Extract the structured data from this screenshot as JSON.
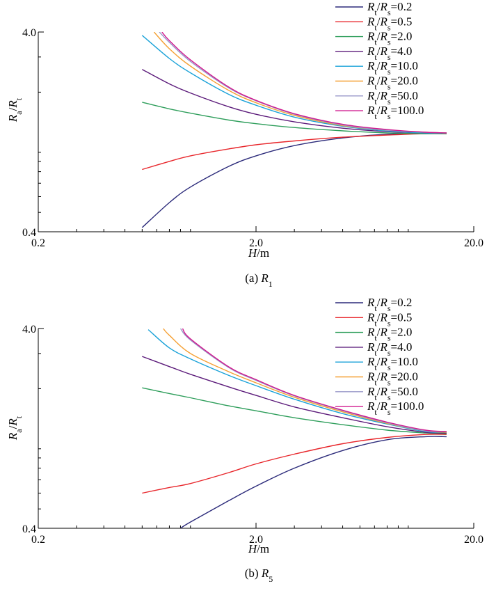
{
  "chart_data": [
    {
      "type": "line",
      "caption": "(a) R1",
      "caption_prefix": "(a) ",
      "caption_symbol": "R",
      "caption_subscript": "1",
      "xlabel": "H/m",
      "ylabel": "Ra/Rt",
      "xscale": "log",
      "yscale": "log",
      "xlim": [
        0.2,
        20.0
      ],
      "ylim": [
        0.4,
        4.0
      ],
      "x_ticklabels": [
        "0.2",
        "2.0",
        "20.0"
      ],
      "y_ticklabels": [
        "0.4",
        "4.0"
      ],
      "grid": false,
      "legend_position": "top-right",
      "series": [
        {
          "name": "Rt/Rs=0.2",
          "ratio": "0.2",
          "color": "#2b2a7a",
          "x": [
            0.6,
            0.8,
            1.0,
            1.5,
            2.0,
            3.0,
            5.0,
            8.0,
            12.0,
            15.0
          ],
          "y": [
            0.42,
            0.56,
            0.67,
            0.85,
            0.96,
            1.08,
            1.18,
            1.23,
            1.24,
            1.24
          ]
        },
        {
          "name": "Rt/Rs=0.5",
          "ratio": "0.5",
          "color": "#e8262b",
          "x": [
            0.6,
            0.8,
            1.0,
            1.5,
            2.0,
            3.0,
            5.0,
            8.0,
            12.0,
            15.0
          ],
          "y": [
            0.82,
            0.9,
            0.96,
            1.04,
            1.09,
            1.14,
            1.19,
            1.22,
            1.24,
            1.24
          ]
        },
        {
          "name": "Rt/Rs=2.0",
          "ratio": "2.0",
          "color": "#2e9e5b",
          "x": [
            0.6,
            0.8,
            1.0,
            1.5,
            2.0,
            3.0,
            5.0,
            8.0,
            12.0,
            15.0
          ],
          "y": [
            1.78,
            1.65,
            1.57,
            1.45,
            1.39,
            1.33,
            1.28,
            1.25,
            1.24,
            1.24
          ]
        },
        {
          "name": "Rt/Rs=4.0",
          "ratio": "4.0",
          "color": "#5b1a7a",
          "x": [
            0.6,
            0.8,
            1.0,
            1.5,
            2.0,
            3.0,
            5.0,
            8.0,
            12.0,
            15.0
          ],
          "y": [
            2.6,
            2.2,
            1.98,
            1.69,
            1.55,
            1.42,
            1.32,
            1.27,
            1.25,
            1.25
          ]
        },
        {
          "name": "Rt/Rs=10.0",
          "ratio": "10.0",
          "color": "#1aa2d8",
          "x": [
            0.6,
            0.8,
            1.0,
            1.5,
            2.0,
            3.0,
            5.0,
            8.0,
            12.0,
            15.0
          ],
          "y": [
            3.85,
            2.95,
            2.5,
            1.95,
            1.72,
            1.5,
            1.35,
            1.28,
            1.25,
            1.25
          ]
        },
        {
          "name": "Rt/Rs=20.0",
          "ratio": "20.0",
          "color": "#f5a033",
          "x": [
            0.68,
            0.8,
            1.0,
            1.5,
            2.0,
            3.0,
            5.0,
            8.0,
            12.0,
            15.0
          ],
          "y": [
            4.0,
            3.3,
            2.7,
            2.04,
            1.77,
            1.53,
            1.36,
            1.29,
            1.26,
            1.25
          ]
        },
        {
          "name": "Rt/Rs=50.0",
          "ratio": "50.0",
          "color": "#9a98c9",
          "x": [
            0.72,
            0.8,
            1.0,
            1.5,
            2.0,
            3.0,
            5.0,
            8.0,
            12.0,
            15.0
          ],
          "y": [
            4.0,
            3.55,
            2.85,
            2.1,
            1.81,
            1.55,
            1.37,
            1.29,
            1.26,
            1.25
          ]
        },
        {
          "name": "Rt/Rs=100.0",
          "ratio": "100.0",
          "color": "#d11a8f",
          "x": [
            0.74,
            0.8,
            1.0,
            1.5,
            2.0,
            3.0,
            5.0,
            8.0,
            12.0,
            15.0
          ],
          "y": [
            4.0,
            3.62,
            2.9,
            2.12,
            1.82,
            1.56,
            1.38,
            1.3,
            1.26,
            1.25
          ]
        }
      ]
    },
    {
      "type": "line",
      "caption": "(b) R5",
      "caption_prefix": "(b) ",
      "caption_symbol": "R",
      "caption_subscript": "5",
      "xlabel": "H/m",
      "ylabel": "Ra/Rt",
      "xscale": "log",
      "yscale": "log",
      "xlim": [
        0.2,
        20.0
      ],
      "ylim": [
        0.4,
        4.0
      ],
      "x_ticklabels": [
        "0.2",
        "2.0",
        "20.0"
      ],
      "y_ticklabels": [
        "0.4",
        "4.0"
      ],
      "grid": false,
      "legend_position": "top-right",
      "series": [
        {
          "name": "Rt/Rs=0.2",
          "ratio": "0.2",
          "color": "#2b2a7a",
          "x": [
            0.9,
            1.0,
            1.5,
            2.0,
            3.0,
            5.0,
            8.0,
            12.0,
            15.0
          ],
          "y": [
            0.4,
            0.43,
            0.55,
            0.65,
            0.8,
            0.98,
            1.11,
            1.15,
            1.15
          ]
        },
        {
          "name": "Rt/Rs=0.5",
          "ratio": "0.5",
          "color": "#e8262b",
          "x": [
            0.6,
            0.8,
            1.0,
            1.5,
            2.0,
            3.0,
            5.0,
            8.0,
            12.0,
            15.0
          ],
          "y": [
            0.6,
            0.64,
            0.67,
            0.76,
            0.84,
            0.94,
            1.06,
            1.14,
            1.18,
            1.18
          ]
        },
        {
          "name": "Rt/Rs=2.0",
          "ratio": "2.0",
          "color": "#2e9e5b",
          "x": [
            0.6,
            0.8,
            1.0,
            1.5,
            2.0,
            3.0,
            5.0,
            8.0,
            12.0,
            15.0
          ],
          "y": [
            2.02,
            1.89,
            1.8,
            1.64,
            1.55,
            1.43,
            1.32,
            1.24,
            1.2,
            1.19
          ]
        },
        {
          "name": "Rt/Rs=4.0",
          "ratio": "4.0",
          "color": "#5b1a7a",
          "x": [
            0.6,
            0.8,
            1.0,
            1.5,
            2.0,
            3.0,
            5.0,
            8.0,
            12.0,
            15.0
          ],
          "y": [
            2.9,
            2.58,
            2.36,
            2.04,
            1.85,
            1.62,
            1.43,
            1.29,
            1.21,
            1.2
          ]
        },
        {
          "name": "Rt/Rs=10.0",
          "ratio": "10.0",
          "color": "#1aa2d8",
          "x": [
            0.64,
            0.8,
            1.0,
            1.5,
            2.0,
            3.0,
            5.0,
            8.0,
            12.0,
            15.0
          ],
          "y": [
            3.95,
            3.2,
            2.82,
            2.33,
            2.07,
            1.77,
            1.5,
            1.33,
            1.22,
            1.21
          ]
        },
        {
          "name": "Rt/Rs=20.0",
          "ratio": "20.0",
          "color": "#f5a033",
          "x": [
            0.75,
            0.8,
            1.0,
            1.5,
            2.0,
            3.0,
            5.0,
            8.0,
            12.0,
            15.0
          ],
          "y": [
            4.0,
            3.7,
            3.0,
            2.43,
            2.14,
            1.81,
            1.53,
            1.34,
            1.23,
            1.21
          ]
        },
        {
          "name": "Rt/Rs=50.0",
          "ratio": "50.0",
          "color": "#9a98c9",
          "x": [
            0.9,
            1.0,
            1.5,
            2.0,
            3.0,
            5.0,
            8.0,
            12.0,
            15.0
          ],
          "y": [
            4.0,
            3.5,
            2.55,
            2.2,
            1.84,
            1.55,
            1.35,
            1.23,
            1.22
          ]
        },
        {
          "name": "Rt/Rs=100.0",
          "ratio": "100.0",
          "color": "#d11a8f",
          "x": [
            0.92,
            1.0,
            1.5,
            2.0,
            3.0,
            5.0,
            8.0,
            12.0,
            15.0
          ],
          "y": [
            4.0,
            3.55,
            2.57,
            2.22,
            1.85,
            1.56,
            1.36,
            1.24,
            1.22
          ]
        }
      ]
    }
  ]
}
